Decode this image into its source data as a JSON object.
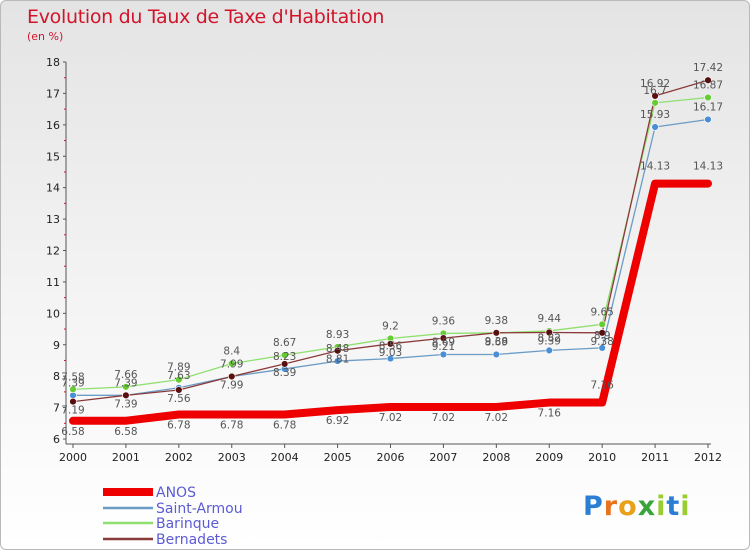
{
  "title": "Evolution du Taux de Taxe d'Habitation",
  "subtitle": "(en %)",
  "logo": {
    "text": "Proxiti",
    "letters": [
      "P",
      "r",
      "o",
      "x",
      "i",
      "t",
      "i"
    ],
    "colors": [
      "#2a7fd4",
      "#e8731a",
      "#e8a11a",
      "#3aa43a",
      "#9acd32",
      "#2a7fd4",
      "#9acd32"
    ]
  },
  "chart_data": {
    "type": "line",
    "title": "Evolution du Taux de Taxe d'Habitation",
    "ylabel": "(en %)",
    "xlabel": "",
    "x": [
      "2000",
      "2001",
      "2002",
      "2003",
      "2004",
      "2005",
      "2006",
      "2007",
      "2008",
      "2009",
      "2010",
      "2011",
      "2012"
    ],
    "ylim": [
      6,
      18
    ],
    "yticks": [
      "6",
      "7",
      "8",
      "9",
      "10",
      "11",
      "12",
      "13",
      "14",
      "15",
      "16",
      "17",
      "18"
    ],
    "grid": false,
    "legend_position": "bottom-left",
    "series": [
      {
        "name": "ANOS",
        "color": "#ee0000",
        "width": 8,
        "marker": false,
        "bold": true,
        "values": [
          6.58,
          6.58,
          6.78,
          6.78,
          6.78,
          6.92,
          7.02,
          7.02,
          7.02,
          7.16,
          7.16,
          14.13,
          14.13
        ],
        "labels": [
          "6.58",
          "6.58",
          "6.78",
          "6.78",
          "6.78",
          "6.92",
          "7.02",
          "7.02",
          "7.02",
          "7.16",
          "7.16",
          "14.13",
          "14.13"
        ]
      },
      {
        "name": "Saint-Armou",
        "color": "#6a9cc6",
        "marker": "#4a8fd6",
        "values": [
          7.39,
          7.39,
          7.63,
          7.99,
          8.23,
          8.48,
          8.56,
          8.69,
          8.69,
          8.82,
          8.9,
          15.93,
          16.17
        ],
        "labels": [
          "7.39",
          "7.39",
          "7.63",
          "7.99",
          "8.23",
          "8.48",
          "8.56",
          "8.69",
          "8.69",
          "8.82",
          "8.9",
          "15.93",
          "16.17"
        ]
      },
      {
        "name": "Barinque",
        "color": "#90e070",
        "marker": "#66cc33",
        "values": [
          7.58,
          7.66,
          7.89,
          8.4,
          8.67,
          8.93,
          9.2,
          9.36,
          9.38,
          9.44,
          9.65,
          16.7,
          16.87
        ],
        "labels": [
          "7.58",
          "7.66",
          "7.89",
          "8.4",
          "8.67",
          "8.93",
          "9.2",
          "9.36",
          "9.38",
          "9.44",
          "9.65",
          "16.7",
          "16.87"
        ]
      },
      {
        "name": "Bernadets",
        "color": "#8b3a3a",
        "marker": "#5a0f0f",
        "values": [
          7.19,
          7.39,
          7.56,
          7.99,
          8.39,
          8.81,
          9.03,
          9.21,
          9.38,
          9.39,
          9.38,
          16.92,
          17.42
        ],
        "labels": [
          "7.19",
          "7.39",
          "7.56",
          "7.99",
          "8.39",
          "8.81",
          "9.03",
          "9.21",
          "9.38",
          "9.39",
          "9.38",
          "16.92",
          "17.42"
        ]
      }
    ]
  }
}
